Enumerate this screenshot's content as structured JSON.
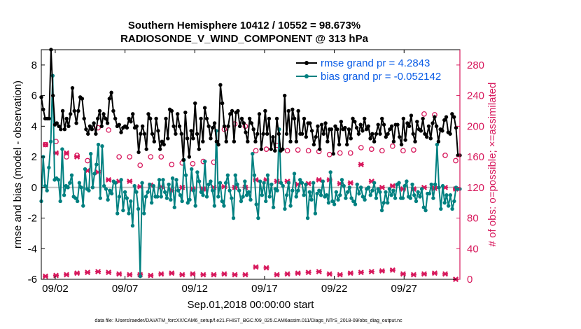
{
  "chart_data": {
    "type": "line",
    "title_line1": "Southern Hemisphere 10412 / 10552 = 98.673%",
    "title_line2": "RADIOSONDE_V_WIND_COMPONENT @ 313 hPa",
    "xlabel": "Sep.01,2018 00:00:00 start",
    "ylabel_left": "rmse and bias (model - observation)",
    "ylabel_right": "# of obs: o=possible; ×=assimilated",
    "footnote": "data file: /Users/raeder/DAI/ATM_forcXX/CAM6_setup/f.e21.FHIST_BGC.f09_025.CAM6assim.011/Diags_NTrS_2018-09/obs_diag_output.nc",
    "x_tick_labels": [
      "09/02",
      "09/07",
      "09/12",
      "09/17",
      "09/22",
      "09/27"
    ],
    "x_tick_days": [
      2,
      7,
      12,
      17,
      22,
      27
    ],
    "xlim_days": [
      1,
      31
    ],
    "ylim_left": [
      -6,
      9
    ],
    "yticks_left": [
      "-6",
      "-4",
      "-2",
      "0",
      "2",
      "4",
      "6",
      "8"
    ],
    "ylim_right": [
      0,
      300
    ],
    "yticks_right": [
      "0",
      "40",
      "80",
      "120",
      "160",
      "200",
      "240",
      "280"
    ],
    "colors": {
      "rmse": "#000000",
      "bias": "#008080",
      "obs": "#d7185c",
      "zero": "#c0c0c0"
    },
    "series": [
      {
        "name": "rmse grand pr = 4.2843",
        "color": "#000000",
        "values": [
          5.9,
          5.1,
          4.5,
          4.5,
          4.5,
          9.0,
          6.0,
          4.1,
          4.2,
          4.0,
          3.8,
          5.0,
          3.8,
          4.5,
          4.0,
          4.8,
          6.5,
          5.0,
          4.2,
          5.0,
          5.9,
          5.8,
          4.5,
          3.8,
          3.5,
          4.0,
          3.8,
          4.2,
          3.5,
          4.5,
          5.0,
          4.0,
          4.8,
          4.5,
          4.2,
          5.8,
          6.2,
          5.0,
          4.5,
          4.0,
          4.1,
          3.6,
          3.9,
          4.0,
          3.9,
          4.5,
          4.3,
          4.8,
          3.9,
          4.0,
          2.3,
          3.5,
          4.0,
          3.5,
          2.5,
          4.8,
          4.5,
          3.5,
          3.0,
          4.5,
          3.7,
          2.5,
          3.0,
          2.8,
          4.5,
          3.2,
          5.1,
          5.0,
          4.0,
          3.5,
          4.8,
          4.0,
          3.5,
          1.8,
          4.9,
          3.2,
          2.0,
          3.7,
          3.2,
          5.5,
          3.5,
          2.5,
          4.5,
          3.0,
          5.2,
          4.5,
          4.0,
          3.2,
          3.9,
          4.2,
          3.0,
          2.8,
          6.7,
          5.5,
          4.0,
          3.0,
          4.0,
          4.8,
          5.0,
          3.0,
          4.9,
          5.0,
          4.0,
          4.5,
          4.2,
          3.6,
          3.0,
          4.5,
          4.2,
          3.8,
          3.0,
          3.5,
          4.8,
          2.5,
          3.5,
          5.0,
          3.5,
          4.5,
          2.5,
          3.3,
          2.4,
          4.5,
          3.5,
          2.4,
          2.5,
          6.0,
          3.5,
          5.0,
          3.0,
          5.1,
          4.5,
          3.0,
          5.0,
          3.5,
          3.5,
          4.5,
          3.3,
          4.2,
          4.2,
          3.7,
          2.8,
          3.3,
          4.0,
          2.5,
          4.1,
          3.5,
          4.2,
          3.0,
          3.8,
          3.8,
          2.2,
          4.0,
          3.8,
          2.8,
          4.3,
          3.8,
          3.9,
          2.8,
          3.8,
          3.2,
          4.5,
          4.3,
          3.9,
          3.5,
          4.1,
          3.7,
          4.5,
          3.8,
          4.0,
          3.2,
          3.5,
          3.0,
          3.5,
          4.1,
          3.5,
          4.5,
          4.1,
          3.3,
          3.5,
          3.8,
          4.0,
          3.0,
          4.1,
          4.1,
          3.3,
          2.8,
          4.5,
          3.1,
          4.2,
          4.0,
          4.7,
          3.5,
          3.0,
          4.3,
          3.8,
          3.7,
          4.5,
          3.5,
          3.3,
          4.0,
          3.2,
          4.2,
          4.6,
          4.0,
          3.0,
          3.8,
          3.7,
          4.4,
          4.6,
          3.6,
          3.5,
          4.8,
          4.6,
          3.9,
          2.1,
          2.1
        ]
      },
      {
        "name": "bias grand pr = -0.052142",
        "color": "#008080",
        "values": [
          -0.9,
          2.0,
          0.1,
          -0.2,
          1.3,
          3.0,
          7.3,
          0.5,
          0.6,
          0.5,
          -0.9,
          2.5,
          -0.5,
          0.1,
          0.0,
          0.3,
          0.8,
          -0.6,
          -0.7,
          -0.9,
          0.3,
          0.0,
          -1.2,
          1.2,
          -0.1,
          -0.2,
          2.2,
          0.0,
          0.9,
          1.5,
          2.8,
          -0.7,
          2.7,
          0.1,
          -0.1,
          -0.8,
          -0.2,
          -0.4,
          0.4,
          0.3,
          -1.7,
          -0.6,
          0.5,
          -1.5,
          -0.3,
          -0.7,
          -1.7,
          -0.9,
          -2.5,
          0.1,
          -0.3,
          -1.4,
          -5.8,
          0.3,
          -1.7,
          -0.6,
          -0.3,
          0.2,
          -1.0,
          0.1,
          -0.6,
          -0.6,
          0.5,
          -0.6,
          0.5,
          -0.3,
          -0.7,
          0.2,
          -0.8,
          0.6,
          -1.3,
          0.5,
          -0.2,
          -0.5,
          -0.9,
          1.8,
          0.8,
          -1.0,
          -0.8,
          1.2,
          -0.2,
          -1.2,
          1.0,
          0.4,
          -0.3,
          -0.5,
          1.7,
          -0.6,
          0.2,
          0.4,
          -0.2,
          -1.2,
          3.7,
          -0.6,
          0.3,
          -0.9,
          -1.2,
          0.3,
          0.8,
          -0.2,
          -0.7,
          -2.0,
          0.8,
          0.2,
          -0.2,
          -0.9,
          -0.6,
          0.4,
          -0.5,
          -0.3,
          -0.8,
          2.2,
          0.8,
          -1.1,
          -2.0,
          0.4,
          -0.5,
          0.3,
          -0.9,
          0.8,
          -0.6,
          0.2,
          -1.3,
          -0.1,
          -0.2,
          3.8,
          0.3,
          0.1,
          -1.4,
          -0.5,
          0.3,
          -1.2,
          -0.2,
          0.9,
          -0.6,
          -0.2,
          0.5,
          0.3,
          -0.5,
          0.2,
          -2.0,
          -0.3,
          -0.8,
          0.3,
          -1.7,
          -0.4,
          -0.2,
          -0.5,
          0.4,
          -0.6,
          -0.5,
          -1.0,
          1.0,
          -0.9,
          -1.1,
          -0.3,
          -0.8,
          -0.5,
          0.5,
          0.1,
          -0.7,
          -0.3,
          0.0,
          -0.7,
          -0.9,
          -1.1,
          0.2,
          -0.4,
          0.0,
          -0.6,
          -0.8,
          -0.1,
          0.0,
          -0.5,
          -0.2,
          0.3,
          -0.7,
          -0.1,
          -0.3,
          -1.5,
          -1.0,
          -0.3,
          -1.0,
          -0.1,
          -0.5,
          -0.2,
          -0.7,
          0.2,
          0.3,
          -0.7,
          -0.7,
          0.1,
          0.4,
          -0.6,
          -0.7,
          0.2,
          -0.5,
          -0.9,
          -0.3,
          -0.6,
          -0.1,
          -1.3,
          -1.5,
          -0.4,
          -0.4,
          0.2,
          -0.7,
          0.2,
          2.8,
          0.0,
          -1.4,
          0.1,
          -1.0,
          -0.5,
          -1.2,
          -0.5,
          -1.4,
          -0.9,
          0.0,
          -0.1,
          -0.1
        ]
      }
    ],
    "obs_assimilated": [
      176,
      165,
      165,
      160,
      142,
      140,
      130,
      128,
      128,
      121,
      123,
      121,
      116,
      120,
      118,
      118,
      120,
      121,
      120,
      120,
      130,
      130,
      128,
      128,
      124,
      125,
      130,
      130,
      125,
      126,
      150,
      128,
      120,
      122,
      118,
      118,
      120,
      119,
      120,
      118
    ],
    "obs_possible": [
      176,
      180,
      160,
      162,
      155,
      198,
      195,
      160,
      160,
      149,
      160,
      160,
      150,
      152,
      151,
      154,
      153,
      196,
      203,
      200,
      168,
      170,
      175,
      168,
      169,
      168,
      167,
      163,
      165,
      165,
      172,
      170,
      168,
      174,
      168,
      169,
      216,
      215,
      162,
      155
    ],
    "obs_assimilated_low": [
      4,
      5,
      6,
      8,
      9,
      10,
      9,
      7,
      6,
      6,
      5,
      7,
      8,
      6,
      7,
      6,
      6,
      7,
      6,
      6,
      16,
      15,
      6,
      7,
      8,
      9,
      10,
      7,
      6,
      8,
      9,
      10,
      11,
      12,
      7,
      6,
      7,
      8,
      7,
      0
    ]
  }
}
